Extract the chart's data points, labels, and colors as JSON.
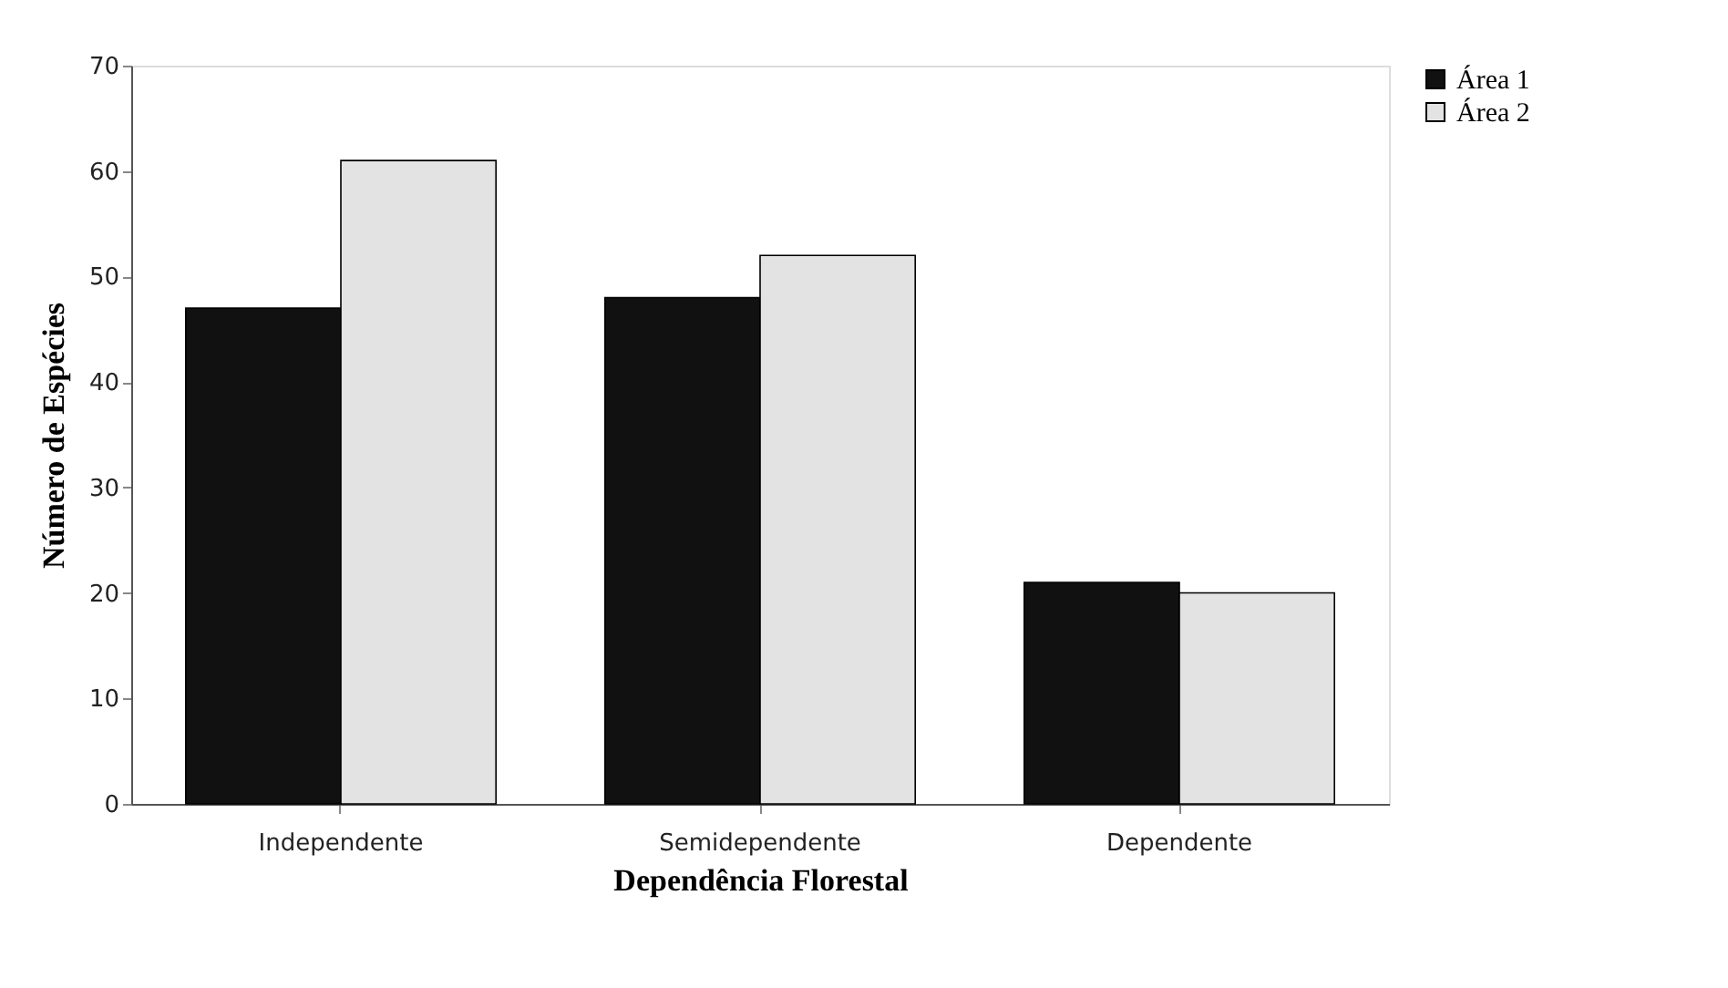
{
  "chart_data": {
    "type": "bar",
    "xlabel": "Dependência Florestal",
    "ylabel": "Número de Espécies",
    "categories": [
      "Independente",
      "Semidependente",
      "Dependente"
    ],
    "series": [
      {
        "name": "Área 1",
        "color": "#111111",
        "values": [
          47,
          48,
          21
        ]
      },
      {
        "name": "Área 2",
        "color": "#e3e3e3",
        "values": [
          61,
          52,
          20
        ]
      }
    ],
    "ylim": [
      0,
      70
    ],
    "yticks": [
      0,
      10,
      20,
      30,
      40,
      50,
      60,
      70
    ],
    "grid": false,
    "legend": "right"
  }
}
